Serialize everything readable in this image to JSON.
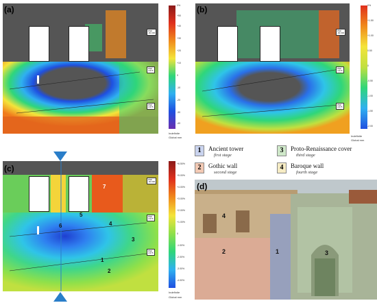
{
  "panels": {
    "a": {
      "label": "(a)"
    },
    "b": {
      "label": "(b)"
    },
    "c": {
      "label": "(c)"
    },
    "d": {
      "label": "(d)"
    }
  },
  "scale_ticks_a": [
    "0%",
    "5%",
    "+50",
    "+40",
    "+30",
    "+20",
    "+10",
    "0",
    "-10",
    "-20",
    "-30",
    "-40",
    "-50"
  ],
  "scale_ticks_b": [
    "0%",
    "+1.50",
    "+1.00",
    "0.50",
    "0",
    "-0.50",
    "-1.00",
    "-1.50",
    "-2.00"
  ],
  "scale_ticks_c": [
    "+6.50%",
    "+5.00%",
    "+4.00%",
    "+3.00%",
    "+2.00%",
    "+1.00%",
    "0",
    "-1.00%",
    "-2.00%",
    "-3.00%",
    "-4.00%"
  ],
  "scale_footer": {
    "top": "Indefinite",
    "bottom": "Global mm"
  },
  "small_boxes": [
    "Wall",
    "-90.000",
    "4.576",
    "4.575"
  ],
  "legend": [
    {
      "num": "1",
      "title": "Ancient tower",
      "sub": "first stage",
      "color": "#c9d3ee"
    },
    {
      "num": "2",
      "title": "Gothic wall",
      "sub": "second stage",
      "color": "#f2c9b4"
    },
    {
      "num": "3",
      "title": "Proto-Renaissance cover",
      "sub": "third stage",
      "color": "#cfe8c9"
    },
    {
      "num": "4",
      "title": "Baroque wall",
      "sub": "fourth stage",
      "color": "#f6ecc4"
    }
  ],
  "markers_c": [
    "7",
    "5",
    "6",
    "4",
    "3",
    "1",
    "2"
  ],
  "photo_markers": [
    "4",
    "2",
    "1",
    "3"
  ],
  "colors": {
    "blue_arrow": "#2a7ec9",
    "panel_bg": "#555555"
  }
}
